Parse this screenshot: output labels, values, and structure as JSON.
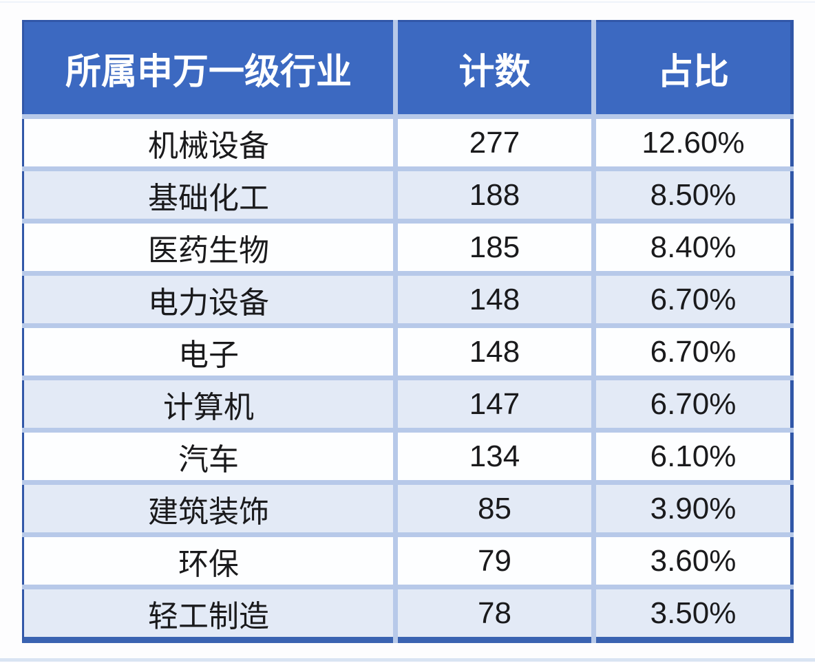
{
  "table": {
    "headers": [
      "所属申万一级行业",
      "计数",
      "占比"
    ],
    "rows": [
      [
        "机械设备",
        "277",
        "12.60%"
      ],
      [
        "基础化工",
        "188",
        "8.50%"
      ],
      [
        "医药生物",
        "185",
        "8.40%"
      ],
      [
        "电力设备",
        "148",
        "6.70%"
      ],
      [
        "电子",
        "148",
        "6.70%"
      ],
      [
        "计算机",
        "147",
        "6.70%"
      ],
      [
        "汽车",
        "134",
        "6.10%"
      ],
      [
        "建筑装饰",
        "85",
        "3.90%"
      ],
      [
        "环保",
        "79",
        "3.60%"
      ],
      [
        "轻工制造",
        "78",
        "3.50%"
      ]
    ]
  },
  "chart_data": {
    "type": "table",
    "title": "",
    "columns": [
      "所属申万一级行业",
      "计数",
      "占比"
    ],
    "categories": [
      "机械设备",
      "基础化工",
      "医药生物",
      "电力设备",
      "电子",
      "计算机",
      "汽车",
      "建筑装饰",
      "环保",
      "轻工制造"
    ],
    "series": [
      {
        "name": "计数",
        "values": [
          277,
          188,
          185,
          148,
          148,
          147,
          134,
          85,
          79,
          78
        ]
      },
      {
        "name": "占比",
        "values": [
          12.6,
          8.5,
          8.4,
          6.7,
          6.7,
          6.7,
          6.1,
          3.9,
          3.6,
          3.5
        ],
        "unit": "%"
      }
    ],
    "layout_hints": {
      "banded_rows": true,
      "header_style": "blue-fill-white-bold-text",
      "grid": "light-blue-separators"
    }
  },
  "colors": {
    "header_bg": "#3c69c1",
    "header_text": "#ffffff",
    "row_white": "#fdfeff",
    "row_band": "#e3eaf6",
    "separator": "#b7c9e9",
    "outer_border": "#3157a8",
    "bottom_border": "#3a63b1",
    "cell_text": "#1a1a1c",
    "page_bg": "#fdfdfe",
    "bottom_edge_strip": "#d9e4f3"
  }
}
